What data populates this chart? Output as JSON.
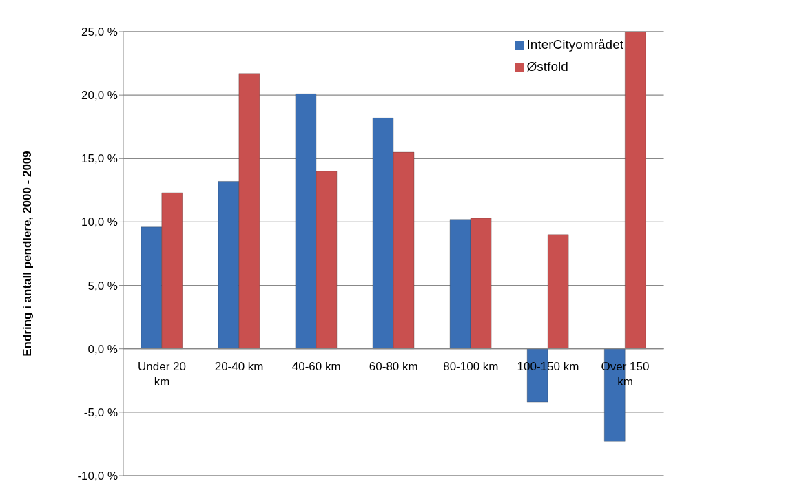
{
  "chart_data": {
    "type": "bar",
    "ylabel": "Endring i antall pendlere, 2000 - 2009",
    "categories": [
      "Under 20 km",
      "20-40 km",
      "40-60 km",
      "60-80 km",
      "80-100 km",
      "100-150 km",
      "Over 150 km"
    ],
    "series": [
      {
        "name": "InterCityområdet",
        "color": "#3a6fb5",
        "values": [
          9.6,
          13.2,
          20.1,
          18.2,
          10.2,
          -4.2,
          -7.3
        ]
      },
      {
        "name": "Østfold",
        "color": "#c9504f",
        "values": [
          12.3,
          21.7,
          14.0,
          15.5,
          10.3,
          9.0,
          25.0
        ]
      }
    ],
    "ylim": [
      -10,
      25
    ],
    "yticks": [
      {
        "value": -10,
        "label": "-10,0 %"
      },
      {
        "value": -5,
        "label": "-5,0 %"
      },
      {
        "value": 0,
        "label": "0,0 %"
      },
      {
        "value": 5,
        "label": "5,0 %"
      },
      {
        "value": 10,
        "label": "10,0 %"
      },
      {
        "value": 15,
        "label": "15,0 %"
      },
      {
        "value": 20,
        "label": "20,0 %"
      },
      {
        "value": 25,
        "label": "25,0 %"
      }
    ],
    "grid": "y",
    "legend": "top right"
  }
}
